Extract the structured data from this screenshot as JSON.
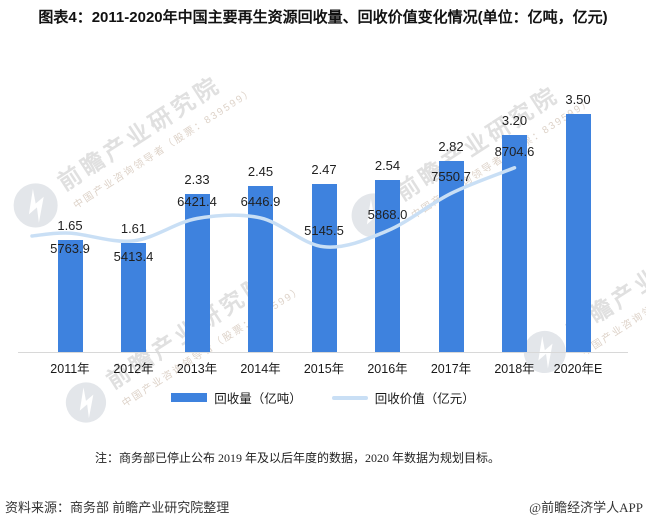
{
  "title": "图表4：2011-2020年中国主要再生资源回收量、回收价值变化情况(单位：亿吨，亿元)",
  "chart_data": {
    "type": "bar+line",
    "categories": [
      "2011年",
      "2012年",
      "2013年",
      "2014年",
      "2015年",
      "2016年",
      "2017年",
      "2018年",
      "2020年E"
    ],
    "series": [
      {
        "name": "回收量（亿吨）",
        "type": "bar",
        "color": "#3e82de",
        "values": [
          1.65,
          1.61,
          2.33,
          2.45,
          2.47,
          2.54,
          2.82,
          3.2,
          3.5
        ]
      },
      {
        "name": "回收价值（亿元）",
        "type": "line",
        "color": "#c9dff5",
        "values": [
          5763.9,
          5413.4,
          6421.4,
          6446.9,
          5145.5,
          5868.0,
          7550.7,
          8704.6,
          null
        ]
      }
    ],
    "y1lim": [
      0,
      4
    ],
    "y2lim": [
      0,
      12300
    ],
    "grid": false,
    "legend_position": "bottom",
    "data_labels": true
  },
  "note": "注：商务部已停止公布 2019 年及以后年度的数据，2020 年数据为规划目标。",
  "footer": {
    "source": "资料来源：商务部 前瞻产业研究院整理",
    "credit": "@前瞻经济学人APP"
  },
  "watermark": {
    "brand": "前瞻产业研究院",
    "tagline": "中国产业咨询领导者（股票：839599）"
  },
  "colors": {
    "bar": "#3e82de",
    "line": "#c9dff5",
    "axis": "#d8d8d8",
    "watermark_text": "#e0e0e0",
    "watermark_logo": "#e3e6ea"
  }
}
